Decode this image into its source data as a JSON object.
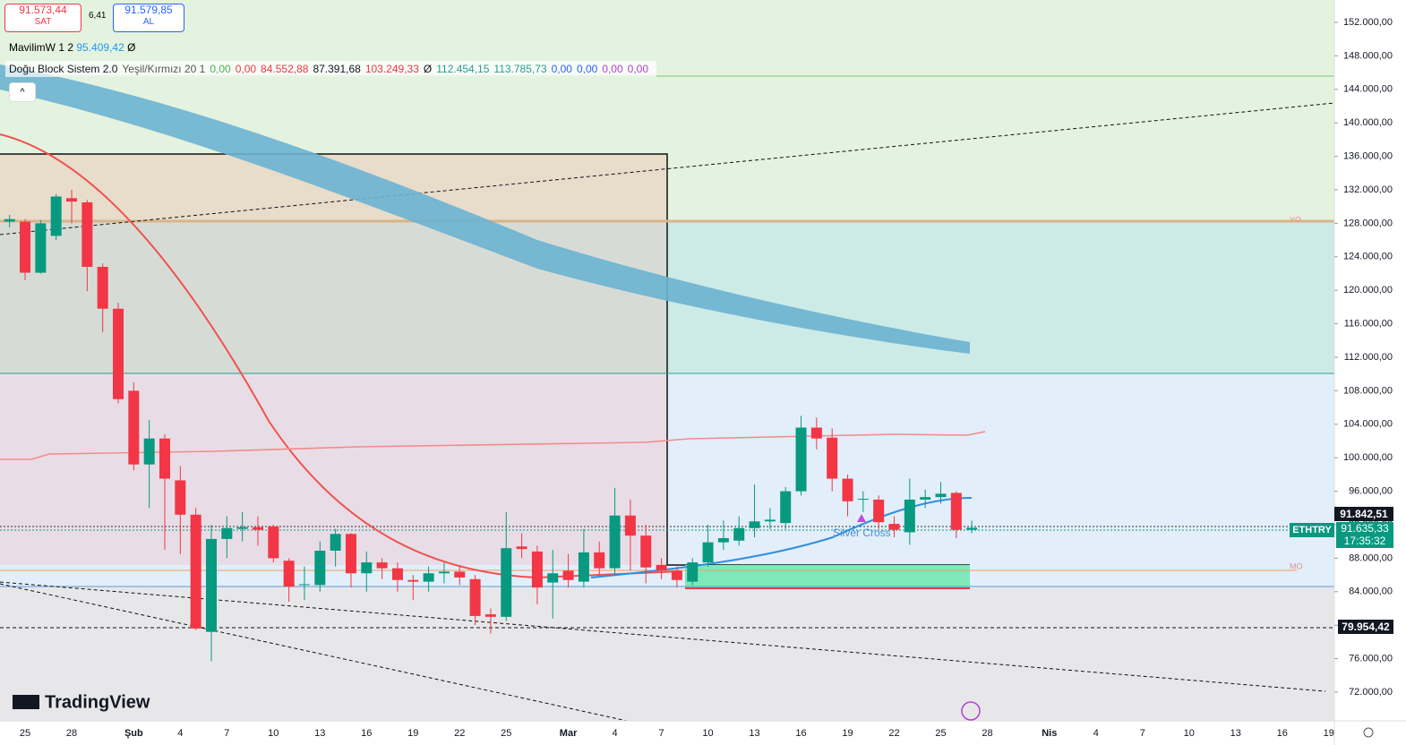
{
  "ui": {
    "sell_price": "91.573,44",
    "sell": "SAT",
    "spread": "6,41",
    "buy_price": "91.579,85",
    "buy": "AL",
    "ind1_name": "MavilimW 1 2",
    "ind1_value": "95.409,42",
    "ind1_extra": "Ø",
    "ind2": [
      {
        "text": "Doğu Block Sistem 2.0",
        "color": "#131722"
      },
      {
        "text": "Yeşil/Kırmızı 20 1",
        "color": "#555"
      },
      {
        "text": "0,00",
        "color": "#4caf50"
      },
      {
        "text": "0,00",
        "color": "#f23645"
      },
      {
        "text": "84.552,88",
        "color": "#f23645"
      },
      {
        "text": "87.391,68",
        "color": "#131722"
      },
      {
        "text": "103.249,33",
        "color": "#f23645"
      },
      {
        "text": "Ø",
        "color": "#131722"
      },
      {
        "text": "112.454,15",
        "color": "#2a9d8f"
      },
      {
        "text": "113.785,73",
        "color": "#2a9d8f"
      },
      {
        "text": "0,00",
        "color": "#2962ff"
      },
      {
        "text": "0,00",
        "color": "#2962ff"
      },
      {
        "text": "0,00",
        "color": "#b43fd9"
      },
      {
        "text": "0,00",
        "color": "#b43fd9"
      }
    ],
    "signal": "Silver Cross",
    "yo": "YO",
    "mo": "MO",
    "logo": "TradingView",
    "last_high": "91.842,51",
    "symbol": "ETHTRY",
    "last_price": "91.635,33",
    "countdown": "17:35:32",
    "low_line": "79.954,42"
  },
  "chart_data": {
    "type": "candlestick",
    "up_color": "#089981",
    "down_color": "#f23645",
    "grid": false,
    "ylim": [
      68580,
      154670
    ],
    "yticks": [
      {
        "value": 72000,
        "label": "72.000,00"
      },
      {
        "value": 76000,
        "label": "76.000,00"
      },
      {
        "value": 80000,
        "label": "80.000,00"
      },
      {
        "value": 84000,
        "label": "84.000,00"
      },
      {
        "value": 88000,
        "label": "88.000,00"
      },
      {
        "value": 92000,
        "label": "92.000,00"
      },
      {
        "value": 96000,
        "label": "96.000,00"
      },
      {
        "value": 100000,
        "label": "100.000,00"
      },
      {
        "value": 104000,
        "label": "104.000,00"
      },
      {
        "value": 108000,
        "label": "108.000,00"
      },
      {
        "value": 112000,
        "label": "112.000,00"
      },
      {
        "value": 116000,
        "label": "116.000,00"
      },
      {
        "value": 120000,
        "label": "120.000,00"
      },
      {
        "value": 124000,
        "label": "124.000,00"
      },
      {
        "value": 128000,
        "label": "128.000,00"
      },
      {
        "value": 132000,
        "label": "132.000,00"
      },
      {
        "value": 136000,
        "label": "136.000,00"
      },
      {
        "value": 140000,
        "label": "140.000,00"
      },
      {
        "value": 144000,
        "label": "144.000,00"
      },
      {
        "value": 148000,
        "label": "148.000,00"
      },
      {
        "value": 152000,
        "label": "152.000,00"
      }
    ],
    "categories": [
      null,
      "25",
      null,
      null,
      "28",
      null,
      null,
      null,
      "Şub",
      null,
      null,
      "4",
      null,
      null,
      "7",
      null,
      null,
      "10",
      null,
      null,
      "13",
      null,
      null,
      "16",
      null,
      null,
      "19",
      null,
      null,
      "22",
      null,
      null,
      "25",
      null,
      null,
      null,
      "Mar",
      null,
      null,
      "4",
      null,
      null,
      "7",
      null,
      null,
      "10",
      null,
      null,
      "13",
      null,
      null,
      "16",
      null,
      null,
      "19",
      null,
      null,
      "22",
      null,
      null,
      "25",
      null,
      null,
      "28",
      null,
      null,
      null,
      "Nis",
      null,
      null,
      "4",
      null,
      null,
      "7",
      null,
      null,
      "10",
      null,
      null,
      "13",
      null,
      null,
      "16",
      null,
      null,
      "19"
    ],
    "open": [
      128200,
      128200,
      122100,
      126500,
      131000,
      130500,
      122800,
      117800,
      108000,
      99200,
      102300,
      97300,
      93200,
      79200,
      90300,
      91500,
      91700,
      91800,
      87700,
      84800,
      84800,
      88900,
      90900,
      86200,
      87500,
      86800,
      85400,
      85200,
      86200,
      86400,
      85500,
      81300,
      81000,
      89400,
      88800,
      85100,
      86500,
      85200,
      88700,
      86800,
      93100,
      90700,
      87200,
      86500,
      85200,
      87500,
      89900,
      90100,
      91600,
      92400,
      92200,
      96000,
      103600,
      102400,
      97500,
      95000,
      95000,
      92100,
      91100,
      95000,
      95300,
      95800,
      91400,
      null,
      null,
      null,
      null,
      null,
      null,
      null,
      null,
      null,
      null,
      null,
      null,
      null,
      null,
      null,
      null,
      null,
      null,
      null,
      null,
      null,
      null,
      null
    ],
    "high": [
      129000,
      128500,
      128400,
      131500,
      132000,
      130800,
      123200,
      118500,
      109000,
      104500,
      102800,
      99000,
      94000,
      92000,
      93000,
      93500,
      93000,
      92000,
      88000,
      87000,
      90000,
      91500,
      91000,
      88800,
      88000,
      87500,
      86000,
      87000,
      87500,
      87000,
      86000,
      82000,
      93500,
      91000,
      89500,
      89000,
      88500,
      91500,
      90000,
      96400,
      95000,
      92000,
      88000,
      87000,
      88000,
      92000,
      92500,
      93000,
      96800,
      94000,
      96500,
      105000,
      104800,
      103500,
      98000,
      96000,
      95500,
      93000,
      97500,
      96200,
      97100,
      96000,
      92500,
      null,
      null,
      null,
      null,
      null,
      null,
      null,
      null,
      null,
      null,
      null,
      null,
      null,
      null,
      null,
      null,
      null,
      null,
      null,
      null,
      null,
      null,
      null
    ],
    "low": [
      127500,
      121200,
      122000,
      126000,
      128000,
      119900,
      115000,
      106500,
      98500,
      94000,
      89000,
      88500,
      79400,
      75700,
      88000,
      90000,
      89500,
      87500,
      82800,
      83000,
      84000,
      87000,
      84500,
      84000,
      85500,
      84000,
      83000,
      84000,
      85000,
      84800,
      80000,
      79000,
      80500,
      88000,
      82500,
      80800,
      84500,
      84500,
      86000,
      86000,
      86500,
      85000,
      85500,
      84500,
      84800,
      87000,
      89000,
      89500,
      90500,
      91500,
      91500,
      95500,
      101000,
      96000,
      93000,
      93500,
      91500,
      90500,
      89600,
      94000,
      94500,
      90400,
      91000,
      null,
      null,
      null,
      null,
      null,
      null,
      null,
      null,
      null,
      null,
      null,
      null,
      null,
      null,
      null,
      null,
      null,
      null,
      null,
      null,
      null,
      null,
      null
    ],
    "close": [
      128500,
      122100,
      128000,
      131200,
      130600,
      122800,
      117800,
      107000,
      99200,
      102300,
      97500,
      93200,
      79600,
      90300,
      91600,
      91700,
      91400,
      88000,
      84600,
      84900,
      88900,
      90900,
      86200,
      87500,
      86800,
      85400,
      85200,
      86200,
      86400,
      85700,
      81100,
      81000,
      89200,
      89100,
      84500,
      86200,
      85400,
      88700,
      86800,
      93100,
      90700,
      86900,
      86500,
      85400,
      87500,
      89900,
      90400,
      91600,
      92400,
      92600,
      96000,
      103600,
      102300,
      97500,
      94800,
      95100,
      92300,
      91400,
      95000,
      95300,
      95700,
      91400,
      91635,
      null,
      null,
      null,
      null,
      null,
      null,
      null,
      null,
      null,
      null,
      null,
      null,
      null,
      null,
      null,
      null,
      null,
      null,
      null,
      null,
      null,
      null,
      null
    ]
  }
}
